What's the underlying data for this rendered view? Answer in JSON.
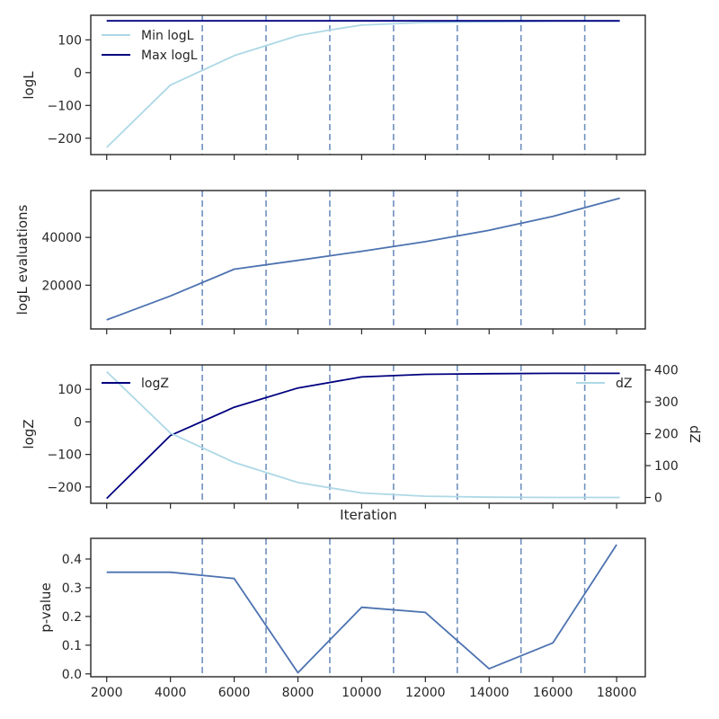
{
  "colors": {
    "min_logL": "#add8e6",
    "max_logL": "#000080",
    "evals": "#4c72b0",
    "logZ": "#000080",
    "dZ": "#add8e6",
    "pvalue": "#4c72b0",
    "vlines": "#6f8fbd"
  },
  "chart_data": [
    {
      "type": "line",
      "ylabel": "logL",
      "xlim": [
        1500,
        18900
      ],
      "ylim": [
        -250,
        175
      ],
      "yticks": [
        -200,
        -100,
        0,
        100
      ],
      "yticklabels": [
        "−200",
        "−100",
        "0",
        "100"
      ],
      "vlines": [
        5000,
        7000,
        9000,
        11000,
        13000,
        15000,
        17000
      ],
      "legend_loc": "upper-left",
      "series": [
        {
          "name": "Min logL",
          "x": [
            2000,
            4000,
            6000,
            8000,
            9000,
            10000,
            12000,
            14000,
            16000,
            18100
          ],
          "y": [
            -228,
            -38,
            52,
            113,
            130,
            145,
            153,
            155,
            157,
            157
          ]
        },
        {
          "name": "Max logL",
          "x": [
            2000,
            18100
          ],
          "y": [
            158,
            158
          ]
        }
      ]
    },
    {
      "type": "line",
      "ylabel": "logL evaluations",
      "xlim": [
        1500,
        18900
      ],
      "ylim": [
        1700,
        59600
      ],
      "yticks": [
        20000,
        40000
      ],
      "yticklabels": [
        "20000",
        "40000"
      ],
      "vlines": [
        5000,
        7000,
        9000,
        11000,
        13000,
        15000,
        17000
      ],
      "series": [
        {
          "name": "",
          "x": [
            2000,
            4000,
            6000,
            8000,
            10000,
            12000,
            14000,
            16000,
            18100
          ],
          "y": [
            5500,
            15500,
            26700,
            30400,
            34200,
            38200,
            43000,
            48800,
            56400
          ]
        }
      ]
    },
    {
      "type": "line",
      "ylabel": "logZ",
      "ylabel_right": "dZ",
      "xlabel": "Iteration",
      "xlim": [
        1500,
        18900
      ],
      "ylim": [
        -250,
        175
      ],
      "yticks": [
        -200,
        -100,
        0,
        100
      ],
      "yticklabels": [
        "−200",
        "−100",
        "0",
        "100"
      ],
      "y2lim": [
        -18.3,
        416.1
      ],
      "y2ticks": [
        0,
        100,
        200,
        300,
        400
      ],
      "y2ticklabels": [
        "0",
        "100",
        "200",
        "300",
        "400"
      ],
      "vlines": [
        5000,
        7000,
        9000,
        11000,
        13000,
        15000,
        17000
      ],
      "series": [
        {
          "name": "logZ",
          "axis": "left",
          "legend_loc": "upper-left",
          "x": [
            2000,
            4000,
            6000,
            8000,
            10000,
            12000,
            14000,
            16000,
            18100
          ],
          "y": [
            -235,
            -42,
            45,
            104,
            138,
            146,
            148,
            149,
            149
          ]
        },
        {
          "name": "dZ",
          "axis": "right",
          "legend_loc": "upper-right",
          "x": [
            2000,
            4000,
            6000,
            8000,
            10000,
            12000,
            14000,
            16000,
            18100
          ],
          "y": [
            395,
            202,
            110,
            47,
            14,
            4,
            1,
            0,
            0
          ]
        }
      ]
    },
    {
      "type": "line",
      "ylabel": "p-value",
      "xlim": [
        1500,
        18900
      ],
      "ylim": [
        -0.01,
        0.472
      ],
      "yticks": [
        0.0,
        0.1,
        0.2,
        0.3,
        0.4
      ],
      "yticklabels": [
        "0.0",
        "0.1",
        "0.2",
        "0.3",
        "0.4"
      ],
      "xticks": [
        2000,
        4000,
        6000,
        8000,
        10000,
        12000,
        14000,
        16000,
        18000
      ],
      "xticklabels": [
        "2000",
        "4000",
        "6000",
        "8000",
        "10000",
        "12000",
        "14000",
        "16000",
        "18000"
      ],
      "vlines": [
        5000,
        7000,
        9000,
        11000,
        13000,
        15000,
        17000
      ],
      "series": [
        {
          "name": "",
          "x": [
            2000,
            4000,
            6000,
            8000,
            10000,
            12000,
            14000,
            16000,
            18000
          ],
          "y": [
            0.354,
            0.354,
            0.332,
            0.004,
            0.232,
            0.214,
            0.018,
            0.108,
            0.45
          ]
        }
      ]
    }
  ]
}
